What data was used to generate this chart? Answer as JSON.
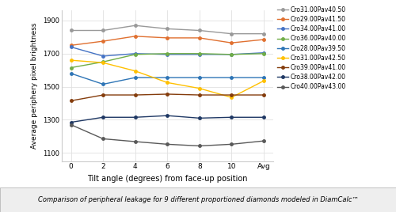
{
  "x_labels": [
    "0",
    "2",
    "4",
    "6",
    "8",
    "10",
    "Avg"
  ],
  "x_positions": [
    0,
    1,
    2,
    3,
    4,
    5,
    6
  ],
  "series": [
    {
      "label": "Cro31.00Pav40.50",
      "color": "#999999",
      "values": [
        1840,
        1840,
        1870,
        1850,
        1840,
        1820,
        1820
      ]
    },
    {
      "label": "Cro29.00Pav41.50",
      "color": "#e07030",
      "values": [
        1750,
        1775,
        1805,
        1795,
        1795,
        1765,
        1785
      ]
    },
    {
      "label": "Cro34.00Pav41.00",
      "color": "#4472c4",
      "values": [
        1740,
        1685,
        1700,
        1695,
        1695,
        1695,
        1705
      ]
    },
    {
      "label": "Cro36.00Pav40.00",
      "color": "#70ad47",
      "values": [
        1615,
        1650,
        1695,
        1700,
        1700,
        1695,
        1700
      ]
    },
    {
      "label": "Cro28.00Pav39.50",
      "color": "#2e75b6",
      "values": [
        1580,
        1515,
        1555,
        1555,
        1555,
        1555,
        1555
      ]
    },
    {
      "label": "Cro31.00Pav42.50",
      "color": "#ffc000",
      "values": [
        1660,
        1645,
        1595,
        1525,
        1490,
        1435,
        1535
      ]
    },
    {
      "label": "Cro39.00Pav41.00",
      "color": "#843c0c",
      "values": [
        1415,
        1450,
        1450,
        1455,
        1450,
        1450,
        1450
      ]
    },
    {
      "label": "Cro38.00Pav42.00",
      "color": "#1f3864",
      "values": [
        1285,
        1315,
        1315,
        1325,
        1310,
        1315,
        1315
      ]
    },
    {
      "label": "Cro40.00Pav43.00",
      "color": "#595959",
      "values": [
        1270,
        1185,
        1168,
        1152,
        1142,
        1152,
        1172
      ]
    }
  ],
  "ylabel": "Average periphery pixel brightness",
  "xlabel": "Tilt angle (degrees) from face-up position",
  "caption": "Comparison of peripheral leakage for 9 different proportioned diamonds modeled in DiamCalc™",
  "ylim": [
    1050,
    1960
  ],
  "yticks": [
    1100,
    1300,
    1500,
    1700,
    1900
  ],
  "background_color": "#ffffff",
  "grid_color": "#e0e0e0",
  "caption_bg": "#eeeeee"
}
